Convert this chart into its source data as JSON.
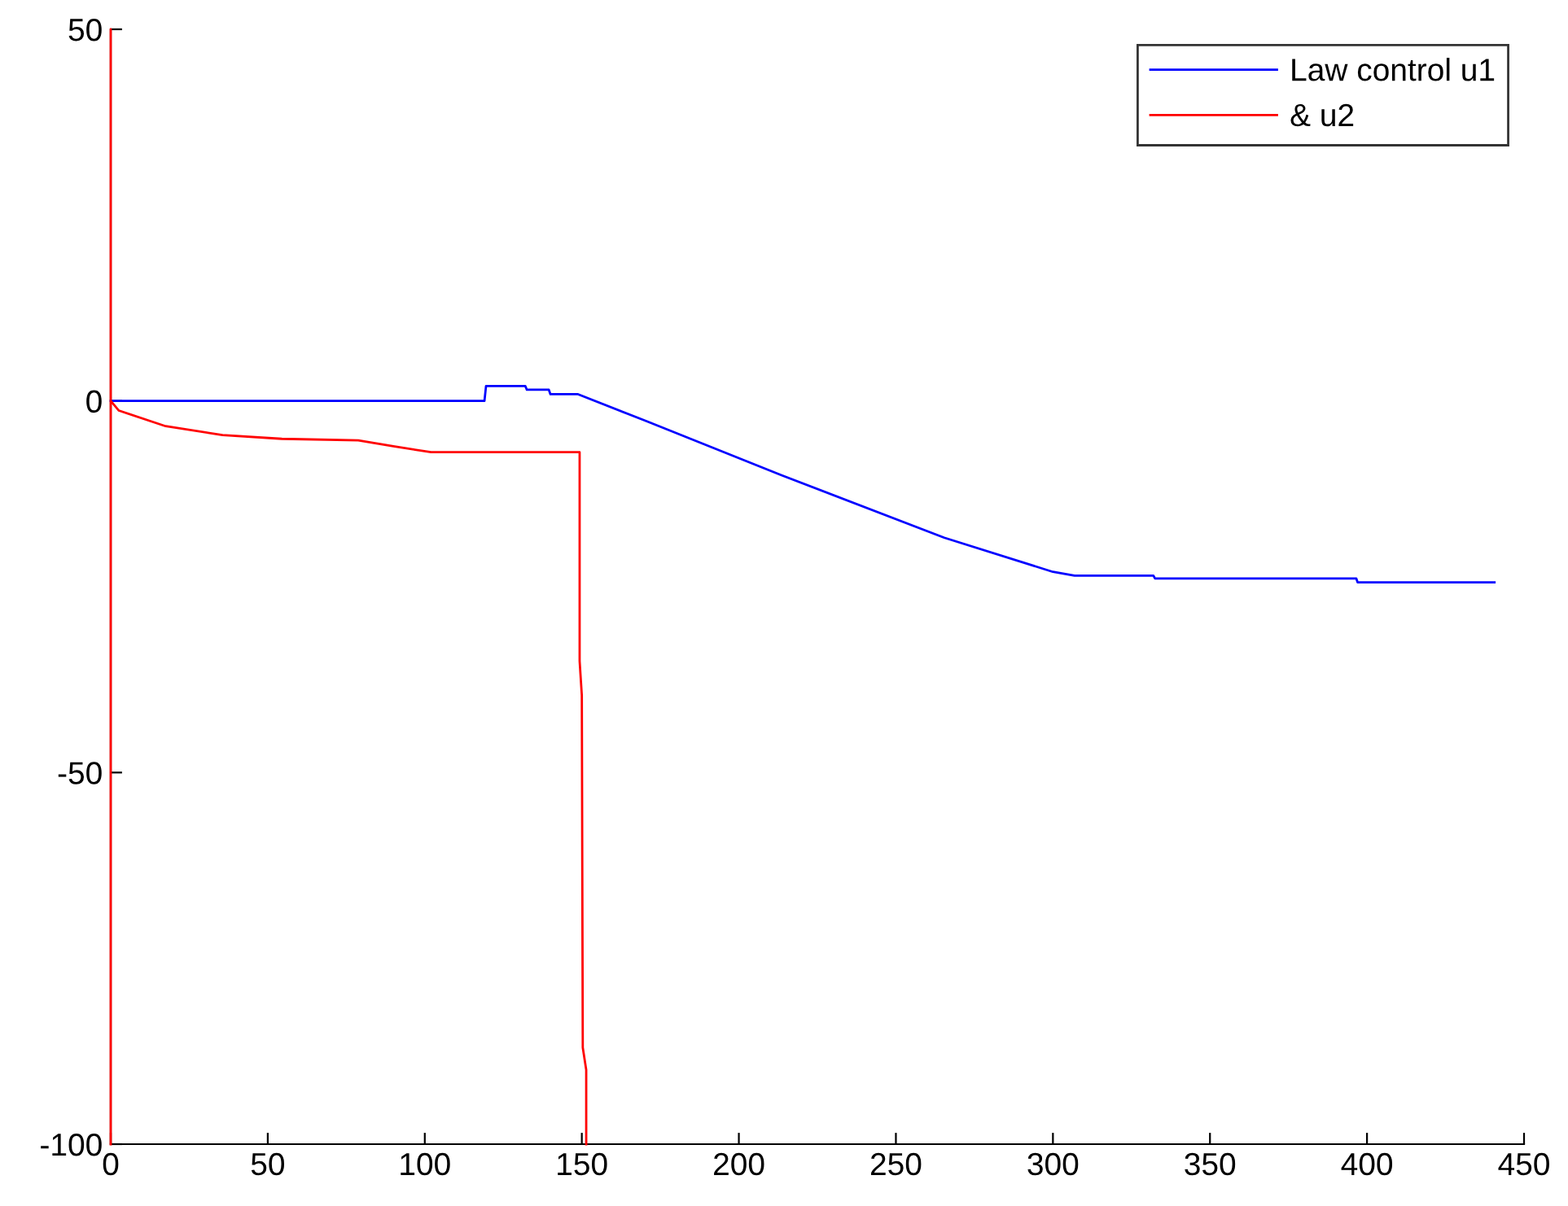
{
  "chart_data": {
    "type": "line",
    "xlim": [
      0,
      450
    ],
    "ylim": [
      -100,
      50
    ],
    "xticks": [
      0,
      50,
      100,
      150,
      200,
      250,
      300,
      350,
      400,
      450
    ],
    "yticks": [
      -100,
      -50,
      0,
      50
    ],
    "grid": false,
    "legend": "top right",
    "line_style": "solid",
    "marker": "none",
    "series": [
      {
        "name": "Law control u1",
        "color": "#0000ff",
        "x": [
          0,
          119,
          119.5,
          132,
          132.5,
          139.5,
          140,
          148.8,
          170.4,
          213.6,
          265.4,
          300,
          306.9,
          332,
          332.5,
          396.6,
          397,
          440.6
        ],
        "values": [
          0,
          0,
          2,
          2,
          1.5,
          1.5,
          0.9,
          0.9,
          -2.7,
          -10,
          -18.4,
          -23,
          -23.5,
          -23.5,
          -23.9,
          -23.9,
          -24.4,
          -24.4
        ]
      },
      {
        "name": "& u2",
        "color": "#ff0000",
        "x": [
          0,
          0,
          0,
          2.6,
          17.5,
          35.6,
          54.5,
          78.8,
          90,
          102,
          149.3,
          149.3,
          150,
          150.3,
          151.4,
          151.4
        ],
        "values": [
          -100,
          50,
          0,
          -1.3,
          -3.4,
          -4.6,
          -5.1,
          -5.3,
          -6.1,
          -6.9,
          -6.9,
          -35,
          -39.6,
          -87,
          -90,
          -100
        ]
      }
    ]
  }
}
